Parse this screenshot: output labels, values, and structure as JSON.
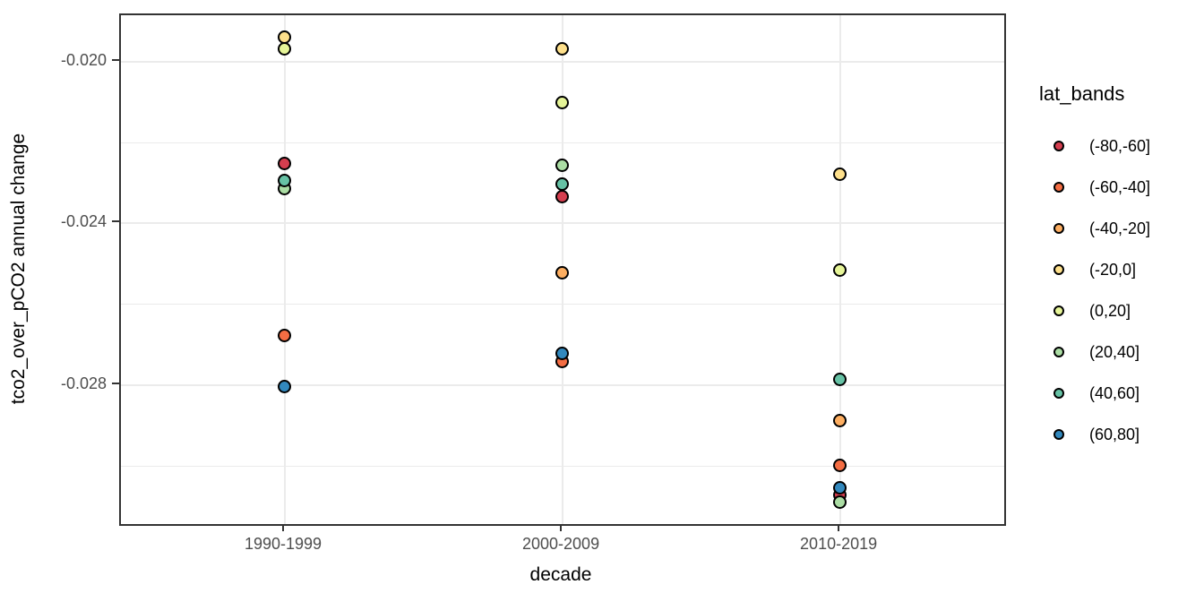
{
  "chart_data": {
    "type": "scatter",
    "title": "",
    "xlabel": "decade",
    "ylabel": "tco2_over_pCO2 annual change",
    "legend_title": "lat_bands",
    "legend_position": "right",
    "grid": "on",
    "categories": [
      "1990-1999",
      "2000-2009",
      "2010-2019"
    ],
    "series": [
      {
        "name": "(-80,-60]",
        "color": "#D53E4F",
        "values": [
          -0.02253,
          -0.02335,
          -0.03074
        ]
      },
      {
        "name": "(-60,-40]",
        "color": "#F46D43",
        "values": [
          -0.02678,
          -0.02742,
          -0.02999
        ]
      },
      {
        "name": "(-40,-20]",
        "color": "#FDAE61",
        "values": [
          null,
          -0.02523,
          -0.02889
        ]
      },
      {
        "name": "(-20,0]",
        "color": "#FEE08B",
        "values": [
          -0.0194,
          -0.01969,
          -0.02279
        ]
      },
      {
        "name": "(0,20]",
        "color": "#E6F598",
        "values": [
          -0.01969,
          -0.02102,
          -0.02516
        ]
      },
      {
        "name": "(20,40]",
        "color": "#ABDDA4",
        "values": [
          -0.02315,
          -0.02257,
          -0.0309
        ]
      },
      {
        "name": "(40,60]",
        "color": "#66C2A5",
        "values": [
          -0.02295,
          -0.02304,
          -0.02787
        ]
      },
      {
        "name": "(60,80]",
        "color": "#3288BD",
        "values": [
          -0.02804,
          -0.02722,
          -0.03056
        ]
      }
    ],
    "yticks_major": [
      -0.02,
      -0.024,
      -0.028
    ],
    "yticks_minor": [
      -0.022,
      -0.026,
      -0.03
    ],
    "ytick_labels": [
      "-0.020",
      "-0.024",
      "-0.028"
    ],
    "ylim": [
      -0.03144,
      -0.01885
    ],
    "colors": {
      "gridline": "#ebebeb",
      "panel_border": "#333333",
      "tick_text": "#4d4d4d",
      "title_text": "#000000",
      "point_outline": "#000000"
    }
  }
}
